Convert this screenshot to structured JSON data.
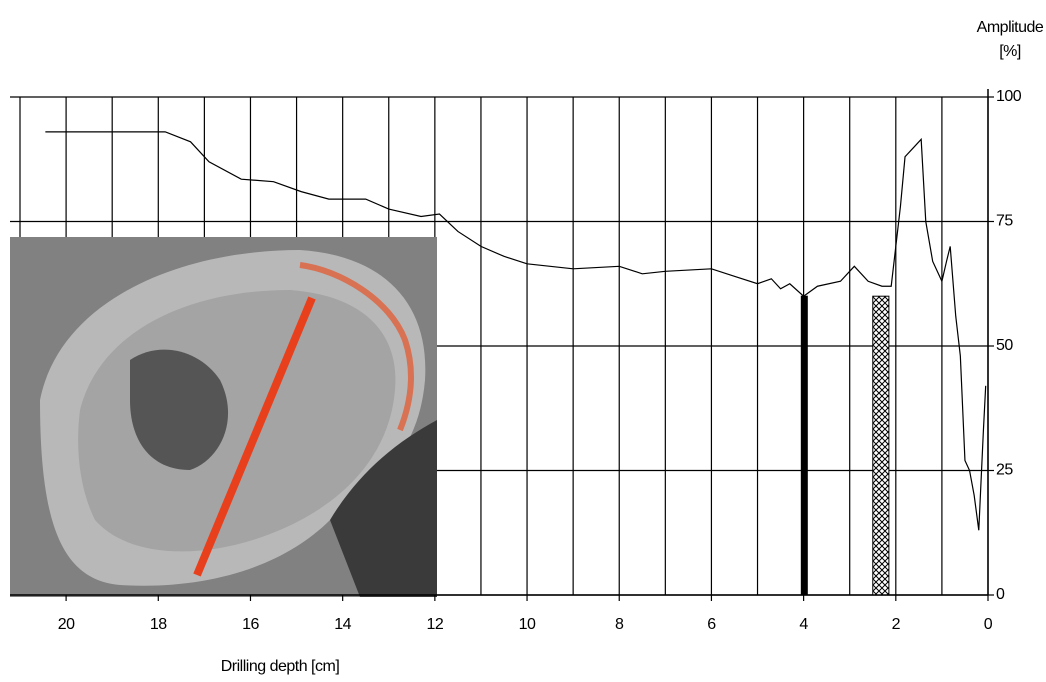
{
  "chart_data": {
    "type": "line",
    "xlabel": "Drilling depth [cm]",
    "ylabel": [
      "Amplitude",
      "[%]"
    ],
    "xlim": [
      21,
      0
    ],
    "ylim": [
      0,
      100
    ],
    "xticks": [
      20,
      18,
      16,
      14,
      12,
      10,
      8,
      6,
      4,
      2,
      0
    ],
    "xgrid": [
      21,
      20,
      19,
      18,
      17,
      16,
      15,
      14,
      13,
      12,
      11,
      10,
      9,
      8,
      7,
      6,
      5,
      4,
      3,
      2,
      1,
      0
    ],
    "yticks": [
      0,
      25,
      50,
      75,
      100
    ],
    "grid": true,
    "series": [
      {
        "color": "#000000",
        "x": [
          20.45,
          17.85,
          17.3,
          16.9,
          16.2,
          15.5,
          14.9,
          14.3,
          13.5,
          13.0,
          12.3,
          11.9,
          11.5,
          11.0,
          10.5,
          10.0,
          9.5,
          9.0,
          8.0,
          7.5,
          7.0,
          6.0,
          5.5,
          5.0,
          4.7,
          4.5,
          4.3,
          4.0,
          3.7,
          3.2,
          2.9,
          2.6,
          2.3,
          2.1,
          1.9,
          1.8,
          1.6,
          1.45,
          1.35,
          1.2,
          1.0,
          0.9,
          0.82,
          0.7,
          0.6,
          0.5,
          0.4,
          0.3,
          0.2,
          0.1,
          0.05
        ],
        "values": [
          93,
          93,
          91,
          87,
          83.5,
          83,
          81,
          79.5,
          79.5,
          77.5,
          76,
          76.5,
          73,
          70,
          68,
          66.5,
          66,
          65.5,
          66,
          64.5,
          65,
          65.5,
          64,
          62.5,
          63.5,
          61.5,
          62.5,
          60,
          62,
          63,
          66,
          63,
          62,
          62,
          78,
          88,
          90,
          91.5,
          75,
          67,
          63,
          67,
          70,
          56,
          48,
          27,
          25,
          20,
          13,
          33,
          42
        ]
      }
    ],
    "bars": [
      {
        "x0": 4.05,
        "x1": 3.92,
        "value": 60,
        "fill": "solid"
      },
      {
        "x0": 2.5,
        "x1": 2.15,
        "value": 60,
        "fill": "hatch"
      }
    ]
  }
}
